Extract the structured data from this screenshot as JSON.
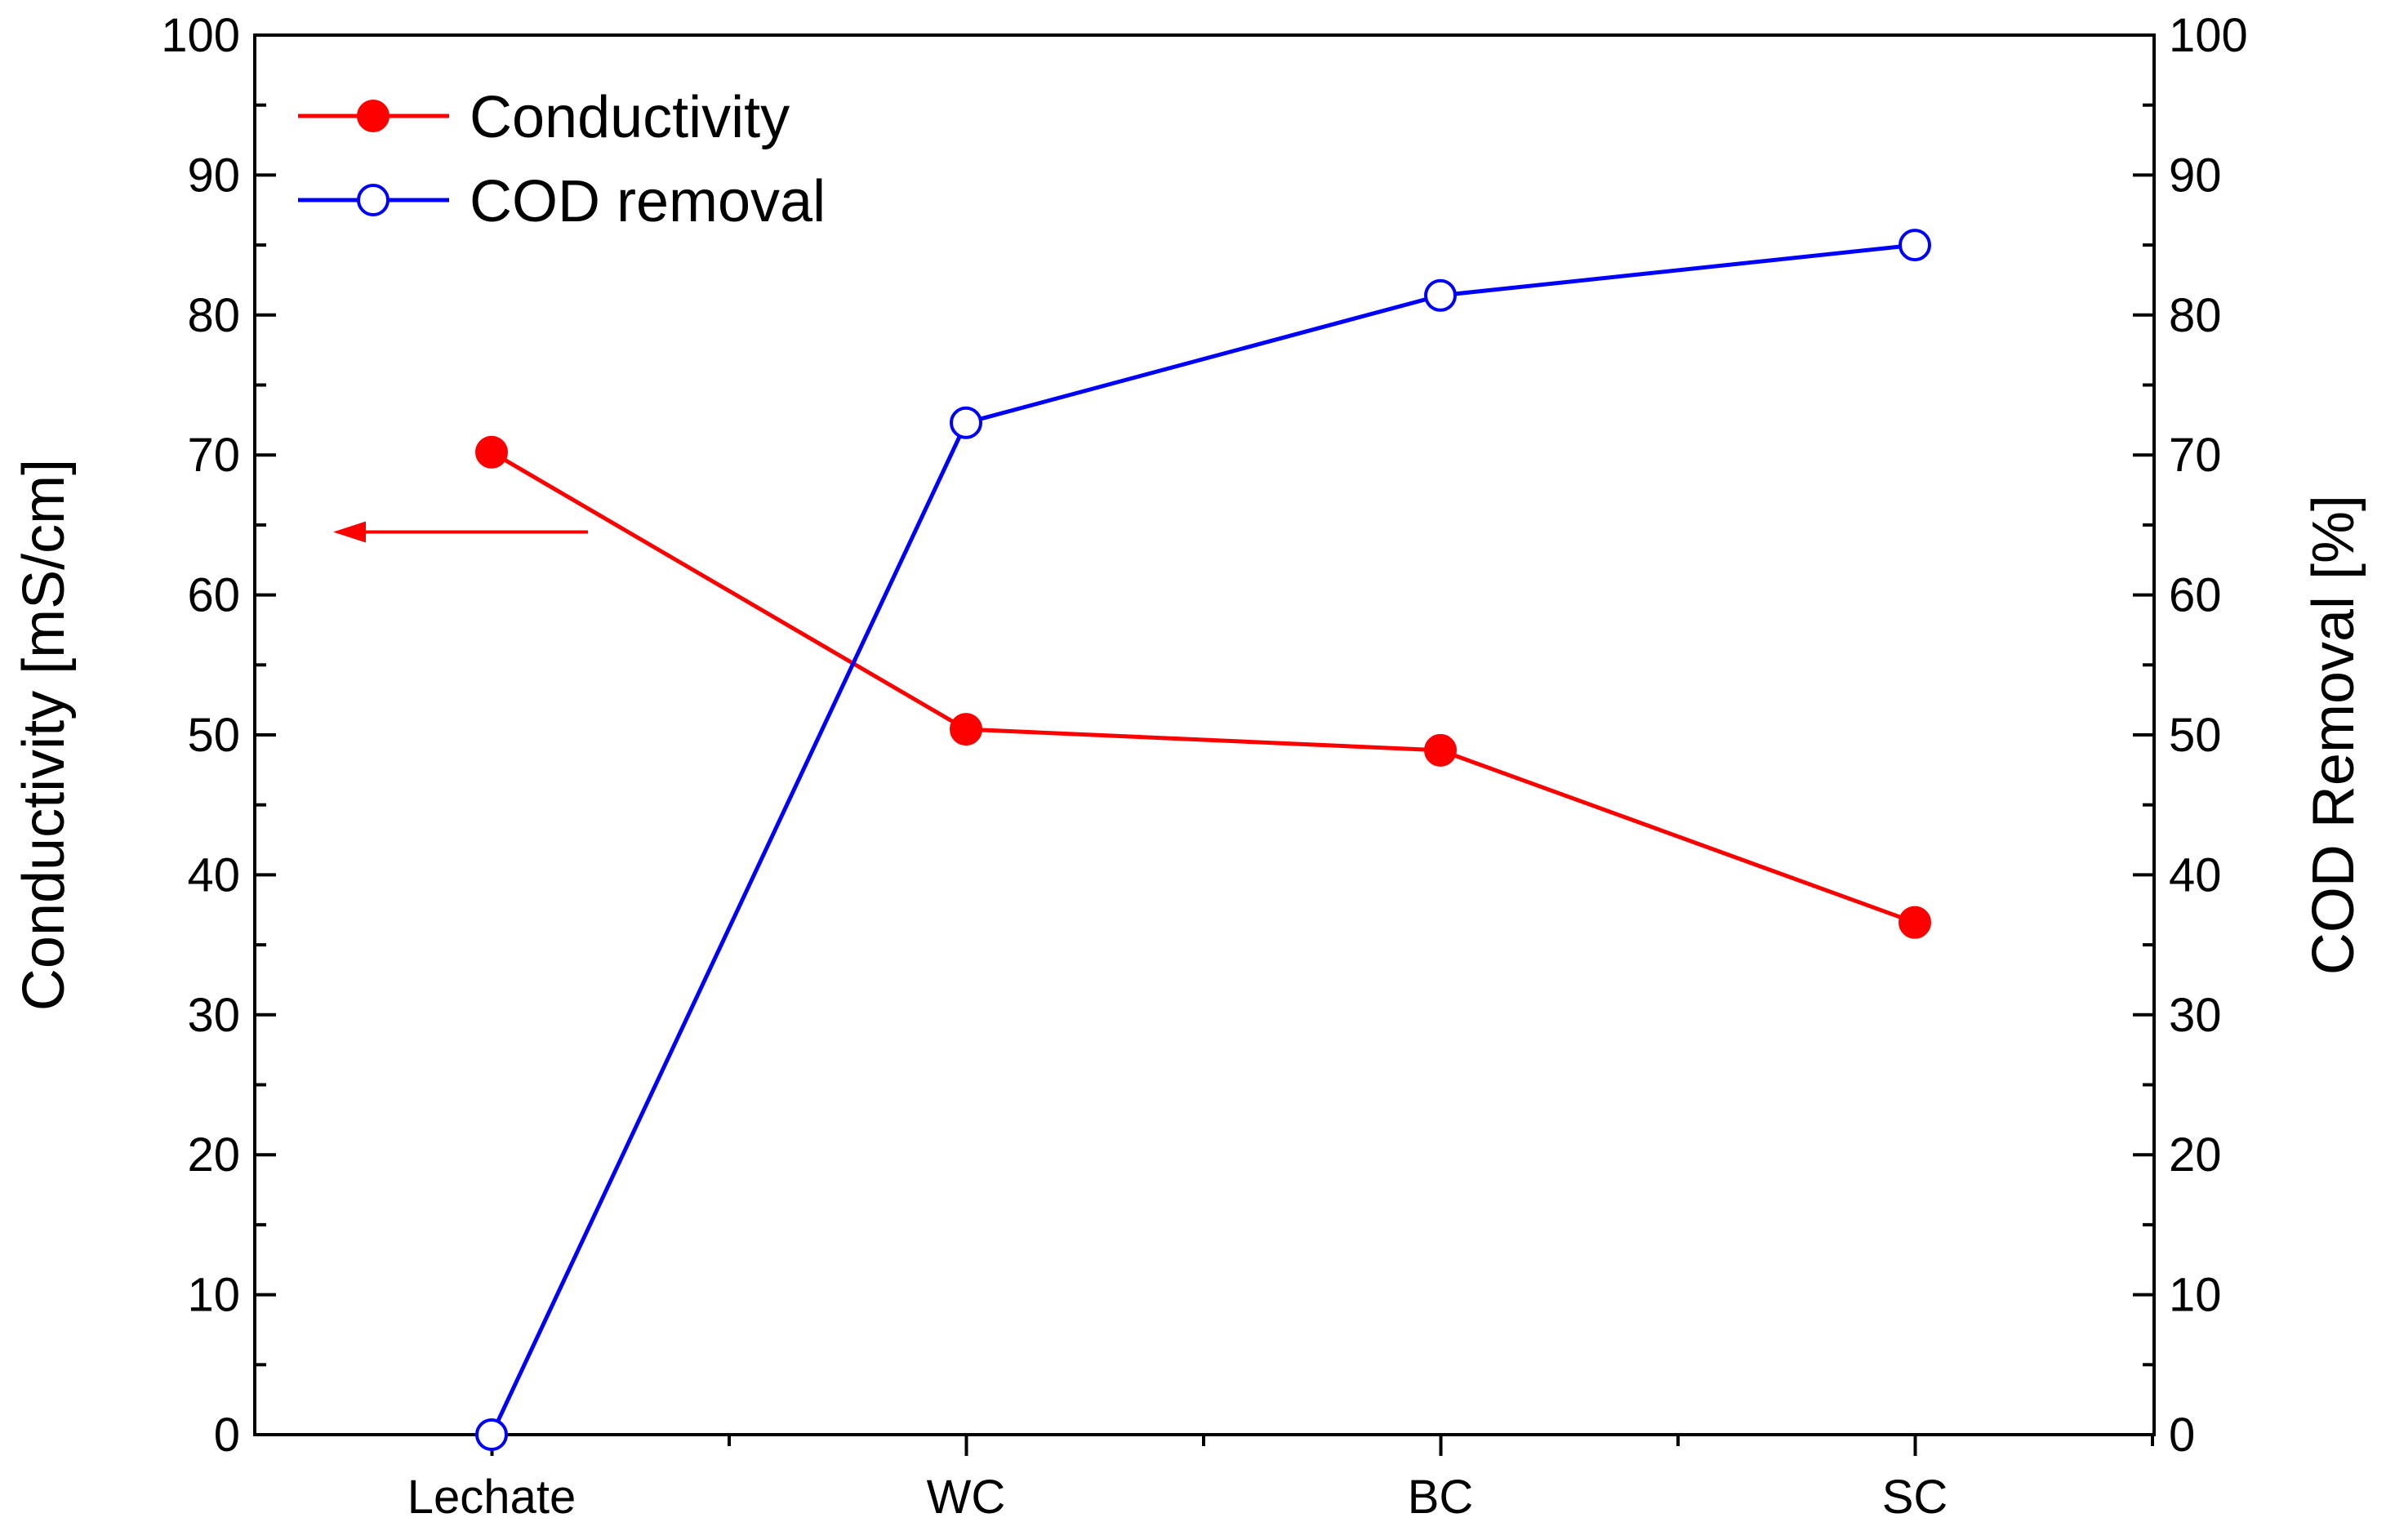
{
  "chart_data": {
    "type": "line",
    "categories": [
      "Lechate",
      "WC",
      "BC",
      "SC"
    ],
    "series": [
      {
        "name": "Conductivity",
        "axis": "left",
        "marker": "filled-circle",
        "color": "#ff0000",
        "values": [
          70.2,
          50.4,
          48.9,
          36.6
        ]
      },
      {
        "name": "COD removal",
        "axis": "right",
        "marker": "open-circle",
        "color": "#0000ff",
        "values": [
          0,
          72.3,
          81.4,
          85.0
        ]
      }
    ],
    "ylabel_left": "Conductivity [mS/cm]",
    "ylabel_right": "COD Removal [%]",
    "ylim_left": [
      0,
      100
    ],
    "ylim_right": [
      0,
      100
    ],
    "yticks": [
      0,
      10,
      20,
      30,
      40,
      50,
      60,
      70,
      80,
      90,
      100
    ],
    "legend": {
      "position": "top-left",
      "entries": [
        "Conductivity",
        "COD removal"
      ]
    },
    "annotation": {
      "type": "arrow",
      "direction": "left",
      "color": "#ff0000",
      "y_value": 64.5,
      "meaning": "conductivity series uses left axis"
    }
  }
}
